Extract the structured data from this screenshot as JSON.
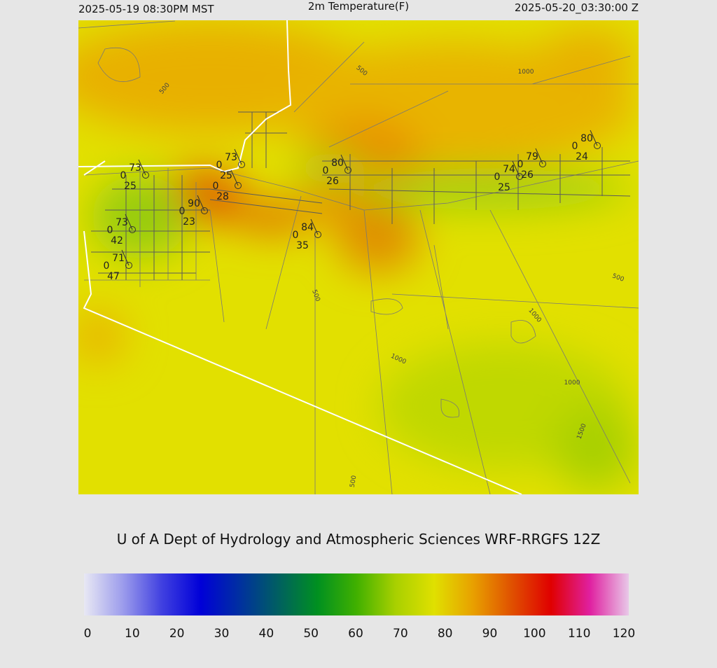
{
  "header": {
    "left": "2025-05-19 08:30PM MST",
    "title": "2m Temperature(F)",
    "right": "2025-05-20_03:30:00 Z"
  },
  "stations": [
    {
      "temp": 73,
      "wind": 0,
      "dew": 25
    },
    {
      "temp": 73,
      "wind": 0,
      "dew": 25
    },
    {
      "wind": 0,
      "dew": 28
    },
    {
      "temp": 90,
      "wind": 0,
      "dew": 23
    },
    {
      "temp": 73,
      "wind": 0,
      "dew": 42
    },
    {
      "temp": 71,
      "wind": 0,
      "dew": 47
    },
    {
      "temp": 84,
      "wind": 0,
      "dew": 35
    },
    {
      "temp": 80,
      "wind": 0,
      "dew": 26
    },
    {
      "temp": 74,
      "wind": 0,
      "dew": 25
    },
    {
      "temp": 79,
      "wind": 0,
      "dew": 26
    },
    {
      "temp": 80,
      "wind": 0,
      "dew": 24
    }
  ],
  "contour_labels": [
    500,
    500,
    1000,
    500,
    500,
    1000,
    1000,
    1000,
    1500,
    500
  ],
  "credit": "U of A Dept of Hydrology and Atmospheric Sciences WRF-RRGFS 12Z",
  "colorbar": {
    "ticks": [
      0,
      10,
      20,
      30,
      40,
      50,
      60,
      70,
      80,
      90,
      100,
      110,
      120
    ],
    "colors": [
      "#e8e8f4",
      "#9c9cec",
      "#4040e0",
      "#0000d8",
      "#0030a0",
      "#006060",
      "#009020",
      "#40b000",
      "#a8d000",
      "#e0e000",
      "#e8a000",
      "#e05000",
      "#e00000",
      "#e020a0",
      "#e8c8e8"
    ]
  }
}
